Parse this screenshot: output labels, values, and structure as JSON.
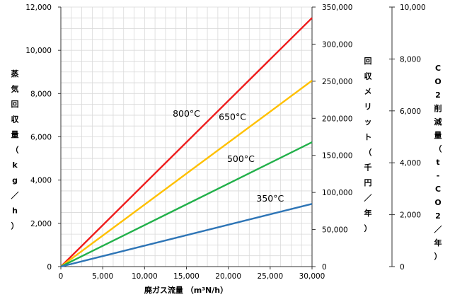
{
  "chart_data": {
    "type": "line",
    "xlabel": "廃ガス流量 （m³N/h）",
    "ylabel_left": "蒸気回収量（kg／h）",
    "ylabel_right1": "回収メリット（千円／年）",
    "ylabel_right2": "CO2削減量（t-CO2／年）",
    "xlim": [
      0,
      30000
    ],
    "ylim": [
      0,
      12000
    ],
    "ylim_right1": [
      0,
      350000
    ],
    "ylim_right2": [
      0,
      10000
    ],
    "x_ticks": [
      "0",
      "5,000",
      "10,000",
      "15,000",
      "20,000",
      "25,000",
      "30,000"
    ],
    "y_ticks": [
      "0",
      "2,000",
      "4,000",
      "6,000",
      "8,000",
      "10,000",
      "12,000"
    ],
    "y_right1_ticks": [
      "0",
      "50,000",
      "100,000",
      "150,000",
      "200,000",
      "250,000",
      "300,000",
      "350,000"
    ],
    "y_right2_ticks": [
      "0",
      "2,000",
      "4,000",
      "6,000",
      "8,000",
      "10,000"
    ],
    "grid": true,
    "series": [
      {
        "name": "800°C",
        "color": "#ee1c1c",
        "x": [
          0,
          30000
        ],
        "y": [
          0,
          11500
        ]
      },
      {
        "name": "650°C",
        "color": "#ffc000",
        "x": [
          0,
          30000
        ],
        "y": [
          0,
          8600
        ]
      },
      {
        "name": "500°C",
        "color": "#22b04a",
        "x": [
          0,
          30000
        ],
        "y": [
          0,
          5750
        ]
      },
      {
        "name": "350°C",
        "color": "#2e75b6",
        "x": [
          0,
          30000
        ],
        "y": [
          0,
          2900
        ]
      }
    ]
  }
}
